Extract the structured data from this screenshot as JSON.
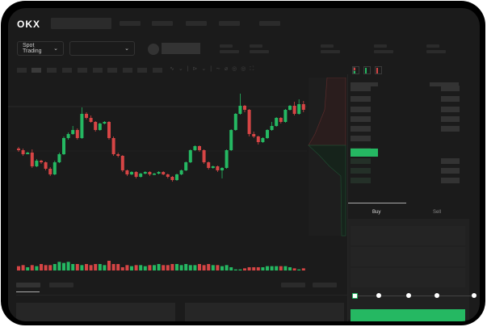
{
  "header": {
    "logo": "OKX",
    "market_selector": "Spot Trading"
  },
  "order_form": {
    "buy_tab": "Buy",
    "sell_tab": "Sell",
    "leverage_slider_value": 0
  },
  "colors": {
    "up": "#25b862",
    "down": "#d64545",
    "background": "#1b1b1b"
  },
  "chart_data": {
    "type": "candlestick",
    "candles": [
      [
        67,
        69,
        63,
        65
      ],
      [
        65,
        67,
        58,
        60
      ],
      [
        60,
        63,
        60,
        62
      ],
      [
        62,
        66,
        43,
        45
      ],
      [
        45,
        54,
        44,
        52
      ],
      [
        52,
        53,
        48,
        50
      ],
      [
        50,
        51,
        40,
        42
      ],
      [
        42,
        44,
        33,
        35
      ],
      [
        35,
        52,
        34,
        50
      ],
      [
        50,
        62,
        49,
        60
      ],
      [
        60,
        82,
        59,
        80
      ],
      [
        80,
        87,
        78,
        85
      ],
      [
        85,
        95,
        84,
        90
      ],
      [
        90,
        92,
        78,
        80
      ],
      [
        80,
        118,
        79,
        110
      ],
      [
        110,
        112,
        103,
        105
      ],
      [
        105,
        108,
        99,
        100
      ],
      [
        100,
        101,
        88,
        90
      ],
      [
        90,
        99,
        89,
        98
      ],
      [
        98,
        101,
        97,
        100
      ],
      [
        100,
        101,
        78,
        80
      ],
      [
        80,
        82,
        58,
        60
      ],
      [
        60,
        62,
        56,
        58
      ],
      [
        58,
        59,
        38,
        40
      ],
      [
        40,
        41,
        33,
        35
      ],
      [
        35,
        39,
        34,
        38
      ],
      [
        38,
        39,
        30,
        32
      ],
      [
        32,
        37,
        31,
        36
      ],
      [
        36,
        39,
        35,
        38
      ],
      [
        38,
        39,
        33,
        35
      ],
      [
        35,
        37,
        34,
        36
      ],
      [
        36,
        39,
        35,
        38
      ],
      [
        38,
        39,
        34,
        35
      ],
      [
        35,
        36,
        30,
        32
      ],
      [
        32,
        33,
        26,
        28
      ],
      [
        28,
        36,
        27,
        35
      ],
      [
        35,
        41,
        34,
        40
      ],
      [
        40,
        51,
        39,
        50
      ],
      [
        50,
        66,
        49,
        65
      ],
      [
        65,
        71,
        64,
        70
      ],
      [
        70,
        71,
        63,
        65
      ],
      [
        65,
        66,
        48,
        50
      ],
      [
        50,
        51,
        41,
        43
      ],
      [
        43,
        46,
        42,
        45
      ],
      [
        45,
        46,
        38,
        40
      ],
      [
        40,
        44,
        30,
        43
      ],
      [
        43,
        66,
        42,
        65
      ],
      [
        65,
        91,
        64,
        90
      ],
      [
        90,
        111,
        89,
        110
      ],
      [
        110,
        135,
        109,
        120
      ],
      [
        120,
        121,
        112,
        115
      ],
      [
        115,
        116,
        82,
        85
      ],
      [
        85,
        88,
        80,
        82
      ],
      [
        82,
        83,
        72,
        75
      ],
      [
        75,
        81,
        74,
        80
      ],
      [
        80,
        91,
        79,
        90
      ],
      [
        90,
        100,
        89,
        95
      ],
      [
        95,
        106,
        94,
        105
      ],
      [
        105,
        106,
        98,
        100
      ],
      [
        100,
        116,
        99,
        115
      ],
      [
        115,
        121,
        114,
        120
      ],
      [
        120,
        125,
        108,
        110
      ],
      [
        110,
        128,
        109,
        122
      ],
      [
        122,
        126,
        112,
        115
      ]
    ],
    "volumes": [
      4,
      5,
      3,
      5,
      4,
      6,
      5,
      5,
      6,
      8,
      7,
      8,
      6,
      6,
      5,
      6,
      5,
      6,
      6,
      5,
      9,
      6,
      6,
      3,
      5,
      4,
      5,
      5,
      4,
      5,
      5,
      6,
      5,
      5,
      6,
      6,
      5,
      6,
      5,
      5,
      6,
      5,
      6,
      5,
      5,
      4,
      5,
      3,
      1,
      1,
      2,
      3,
      3,
      3,
      3,
      4,
      4,
      4,
      4,
      4,
      3,
      2,
      1,
      2
    ],
    "ylim": [
      -40,
      155
    ]
  }
}
